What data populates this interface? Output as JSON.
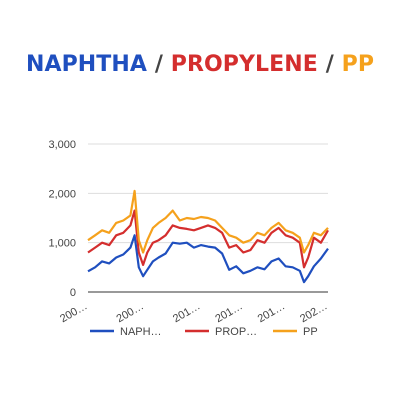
{
  "title": {
    "parts": [
      "NAPHTHA",
      "PROPYLENE",
      "PP"
    ],
    "sep": " / "
  },
  "colors": {
    "NAPHTHA": "#1f4fbf",
    "PROPYLENE": "#d42e2e",
    "PP": "#f5a11c",
    "grid": "#dddddd",
    "axis": "#333333"
  },
  "chart_data": {
    "type": "line",
    "xlabel": "",
    "ylabel": "",
    "ylim": [
      0,
      3000
    ],
    "yticks": [
      0,
      1000,
      2000,
      3000
    ],
    "ytick_labels": [
      "0",
      "1,000",
      "2,000",
      "3,000"
    ],
    "xlim": [
      2005,
      2022
    ],
    "xtick_positions": [
      2005,
      2009,
      2013,
      2016,
      2019,
      2022
    ],
    "xtick_labels": [
      "200…",
      "200…",
      "201…",
      "201…",
      "201…",
      "202…"
    ],
    "grid": true,
    "legend_position": "bottom",
    "legend": [
      "NAPH…",
      "PROP…",
      "PP"
    ],
    "x": [
      2005.0,
      2005.5,
      2006.0,
      2006.5,
      2007.0,
      2007.5,
      2008.0,
      2008.3,
      2008.6,
      2008.9,
      2009.2,
      2009.6,
      2010.0,
      2010.5,
      2011.0,
      2011.5,
      2012.0,
      2012.5,
      2013.0,
      2013.5,
      2014.0,
      2014.5,
      2015.0,
      2015.5,
      2016.0,
      2016.5,
      2017.0,
      2017.5,
      2018.0,
      2018.5,
      2019.0,
      2019.5,
      2020.0,
      2020.3,
      2020.6,
      2021.0,
      2021.5,
      2022.0
    ],
    "series": [
      {
        "name": "NAPHTHA",
        "values": [
          420,
          500,
          620,
          580,
          700,
          760,
          900,
          1150,
          500,
          320,
          450,
          620,
          700,
          780,
          1000,
          980,
          1000,
          900,
          950,
          920,
          900,
          780,
          450,
          520,
          380,
          430,
          500,
          460,
          620,
          680,
          520,
          500,
          430,
          200,
          320,
          520,
          680,
          880
        ]
      },
      {
        "name": "PROPYLENE",
        "values": [
          800,
          900,
          1000,
          950,
          1150,
          1200,
          1350,
          1650,
          800,
          550,
          800,
          1000,
          1050,
          1150,
          1350,
          1300,
          1280,
          1250,
          1300,
          1350,
          1300,
          1200,
          900,
          950,
          800,
          850,
          1050,
          1000,
          1200,
          1300,
          1150,
          1100,
          1000,
          500,
          700,
          1100,
          1000,
          1250
        ]
      },
      {
        "name": "PP",
        "values": [
          1050,
          1150,
          1250,
          1200,
          1400,
          1450,
          1550,
          2050,
          1050,
          800,
          1050,
          1300,
          1400,
          1500,
          1650,
          1450,
          1500,
          1480,
          1520,
          1500,
          1450,
          1300,
          1150,
          1100,
          1000,
          1050,
          1200,
          1150,
          1300,
          1400,
          1250,
          1200,
          1100,
          800,
          950,
          1200,
          1150,
          1300
        ]
      }
    ]
  }
}
